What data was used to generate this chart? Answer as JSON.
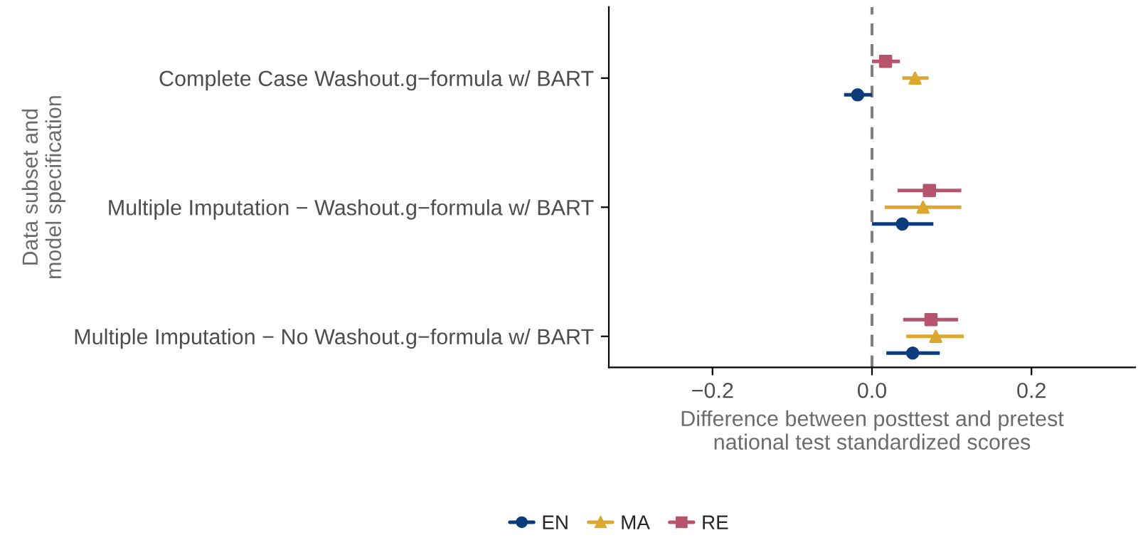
{
  "chart_data": {
    "type": "scatter",
    "orientation": "horizontal",
    "xlabel": "Difference between posttest and pretest\nnational test standardized scores",
    "ylabel": "Data subset and\nmodel specification",
    "categories": [
      "Complete Case Washout.g−formula w/ BART",
      "Multiple Imputation − Washout.g−formula w/ BART",
      "Multiple Imputation − No Washout.g−formula w/ BART"
    ],
    "xlim": [
      -0.33,
      0.33
    ],
    "xticks": [
      {
        "value": -0.2,
        "label": "−0.2"
      },
      {
        "value": 0.0,
        "label": "0.0"
      },
      {
        "value": 0.2,
        "label": "0.2"
      }
    ],
    "series": [
      {
        "name": "EN",
        "color": "#0d3c7c",
        "marker": "circle",
        "values": [
          -0.018,
          0.038,
          0.051
        ],
        "errors": [
          [
            -0.035,
            0.0
          ],
          [
            0.0,
            0.077
          ],
          [
            0.018,
            0.085
          ]
        ]
      },
      {
        "name": "MA",
        "color": "#dba72e",
        "marker": "triangle",
        "values": [
          0.054,
          0.064,
          0.08
        ],
        "errors": [
          [
            0.038,
            0.071
          ],
          [
            0.016,
            0.112
          ],
          [
            0.043,
            0.115
          ]
        ]
      },
      {
        "name": "RE",
        "color": "#b5546c",
        "marker": "square",
        "values": [
          0.017,
          0.072,
          0.074
        ],
        "errors": [
          [
            0.0,
            0.035
          ],
          [
            0.032,
            0.112
          ],
          [
            0.039,
            0.108
          ]
        ]
      }
    ],
    "ref_lines": [
      {
        "axis": "x",
        "value": 0,
        "color": "#808080",
        "line_style": "dashed"
      }
    ],
    "legend": "bottom",
    "grid": false
  }
}
